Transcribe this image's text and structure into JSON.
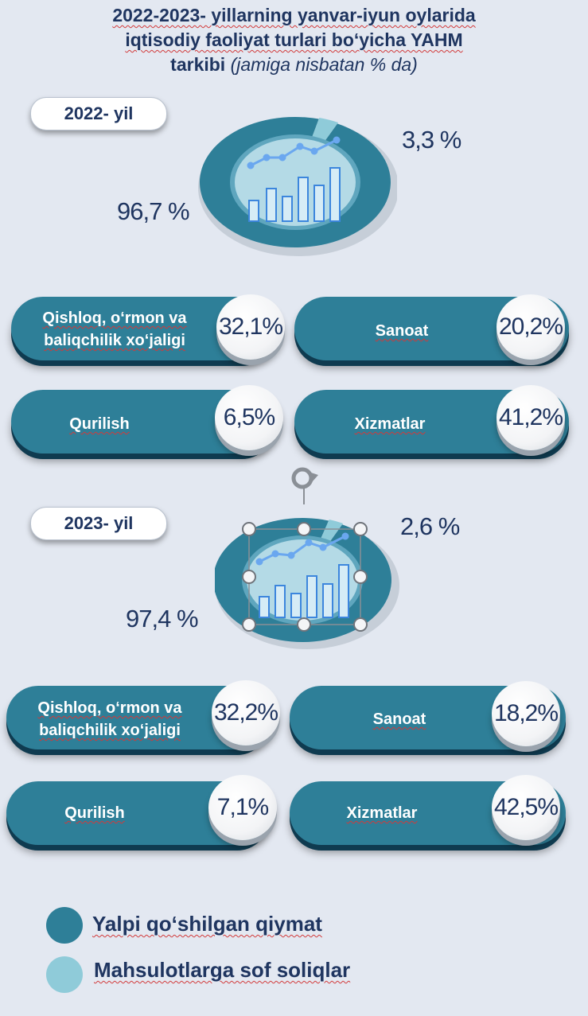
{
  "title": {
    "line1": "2022-2023- yillarning yanvar-iyun oylarida",
    "line2": "iqtisodiy faoliyat turlari bo‘yicha YAHM",
    "line3": "tarkibi",
    "line3_sub": "(jamiga nisbatan % da)"
  },
  "colors": {
    "main": "#2e7f98",
    "dark": "#0f3b50",
    "light": "#8fcbd9",
    "text": "#1f3560"
  },
  "years": [
    {
      "label": "2022- yil",
      "main_pct": "96,7 %",
      "tax_pct": "3,3 %",
      "categories": [
        {
          "label_line1": "Qishloq, o‘rmon va",
          "label_line2": "baliqchilik xo‘jaligi",
          "value": "32,1%"
        },
        {
          "label_line1": "Sanoat",
          "label_line2": "",
          "value": "20,2%"
        },
        {
          "label_line1": "Qurilish",
          "label_line2": "",
          "value": "6,5%"
        },
        {
          "label_line1": "Xizmatlar",
          "label_line2": "",
          "value": "41,2%"
        }
      ]
    },
    {
      "label": "2023- yil",
      "main_pct": "97,4 %",
      "tax_pct": "2,6 %",
      "categories": [
        {
          "label_line1": "Qishloq, o‘rmon va",
          "label_line2": "baliqchilik xo‘jaligi",
          "value": "32,2%"
        },
        {
          "label_line1": "Sanoat",
          "label_line2": "",
          "value": "18,2%"
        },
        {
          "label_line1": "Qurilish",
          "label_line2": "",
          "value": "7,1%"
        },
        {
          "label_line1": "Xizmatlar",
          "label_line2": "",
          "value": "42,5%"
        }
      ]
    }
  ],
  "legend": [
    {
      "label": "Yalpi qo‘shilgan qiymat",
      "color": "#2e7f98"
    },
    {
      "label": "Mahsulotlarga sof soliqlar",
      "color": "#8fcbd9"
    }
  ],
  "chart_data": [
    {
      "type": "pie",
      "categories": [
        "Yalpi qo‘shilgan qiymat",
        "Mahsulotlarga sof soliqlar"
      ],
      "values": [
        96.7,
        3.3
      ]
    },
    {
      "type": "pie",
      "categories": [
        "Yalpi qo‘shilgan qiymat",
        "Mahsulotlarga sof soliqlar"
      ],
      "values": [
        97.4,
        2.6
      ]
    },
    {
      "type": "bar",
      "categories": [
        "Qishloq, o‘rmon va baliqchilik xo‘jaligi",
        "Sanoat",
        "Qurilish",
        "Xizmatlar"
      ],
      "series": [
        {
          "name": "2022- yil",
          "values": [
            32.1,
            20.2,
            6.5,
            41.2
          ]
        },
        {
          "name": "2023- yil",
          "values": [
            32.2,
            18.2,
            7.1,
            42.5
          ]
        }
      ]
    }
  ]
}
